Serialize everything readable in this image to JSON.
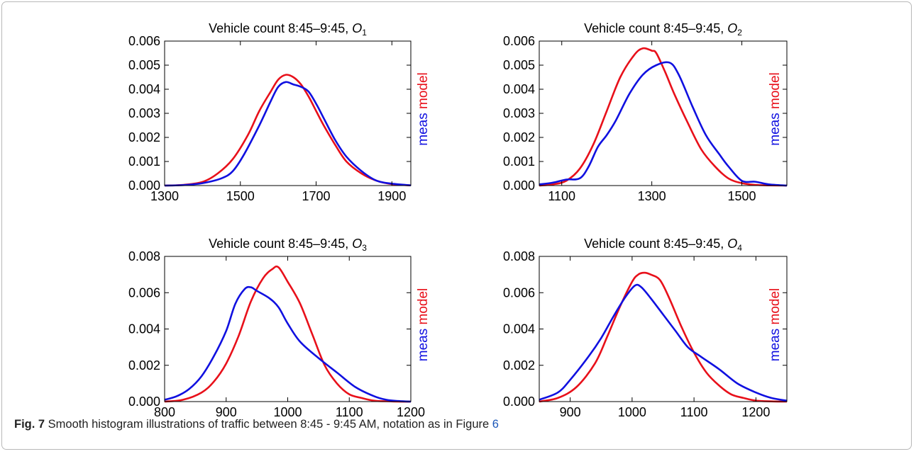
{
  "colors": {
    "model": "#e8101a",
    "meas": "#1010e0",
    "axis": "#000000"
  },
  "legend": {
    "model_label": "model",
    "meas_label": "meas"
  },
  "caption": {
    "label": "Fig. 7",
    "text": " Smooth histogram illustrations of traffic between 8:45 - 9:45 AM, notation as in Figure ",
    "ref": "6"
  },
  "chart_data": [
    {
      "type": "line",
      "title_prefix": "Vehicle count 8:45–9:45, ",
      "title_var": "O",
      "title_sub": "1",
      "xlim": [
        1300,
        1950
      ],
      "ylim": [
        0,
        0.006
      ],
      "xticks": [
        1300,
        1500,
        1700,
        1900
      ],
      "xtick_labels": [
        "1300",
        "1500",
        "1700",
        "1900"
      ],
      "yticks": [
        0,
        0.001,
        0.002,
        0.003,
        0.004,
        0.005,
        0.006
      ],
      "ytick_labels": [
        "0.000",
        "0.001",
        "0.002",
        "0.003",
        "0.004",
        "0.005",
        "0.006"
      ],
      "series": [
        {
          "name": "model",
          "x": [
            1300,
            1350,
            1400,
            1440,
            1480,
            1520,
            1550,
            1580,
            1600,
            1620,
            1640,
            1660,
            1680,
            1700,
            1720,
            1750,
            1780,
            1820,
            1860,
            1900,
            1950
          ],
          "y": [
            0,
            3e-05,
            0.00015,
            0.0005,
            0.0011,
            0.0021,
            0.0031,
            0.0039,
            0.0044,
            0.0046,
            0.0045,
            0.0042,
            0.0037,
            0.0031,
            0.0025,
            0.0017,
            0.001,
            0.0005,
            0.0002,
            6e-05,
            1e-05
          ]
        },
        {
          "name": "meas",
          "x": [
            1300,
            1350,
            1400,
            1450,
            1480,
            1510,
            1550,
            1580,
            1600,
            1620,
            1640,
            1660,
            1680,
            1700,
            1720,
            1750,
            1780,
            1820,
            1860,
            1900,
            1950
          ],
          "y": [
            0,
            2e-05,
            0.0001,
            0.0003,
            0.0006,
            0.0013,
            0.0025,
            0.0035,
            0.0041,
            0.0043,
            0.0042,
            0.0041,
            0.0039,
            0.0034,
            0.0028,
            0.0019,
            0.0012,
            0.0006,
            0.0002,
            8e-05,
            1e-05
          ]
        }
      ]
    },
    {
      "type": "line",
      "title_prefix": "Vehicle count 8:45–9:45, ",
      "title_var": "O",
      "title_sub": "2",
      "xlim": [
        1050,
        1600
      ],
      "ylim": [
        0,
        0.006
      ],
      "xticks": [
        1100,
        1300,
        1500
      ],
      "xtick_labels": [
        "1100",
        "1300",
        "1500"
      ],
      "yticks": [
        0,
        0.001,
        0.002,
        0.003,
        0.004,
        0.005,
        0.006
      ],
      "ytick_labels": [
        "0.000",
        "0.001",
        "0.002",
        "0.003",
        "0.004",
        "0.005",
        "0.006"
      ],
      "series": [
        {
          "name": "model",
          "x": [
            1050,
            1080,
            1110,
            1140,
            1170,
            1200,
            1230,
            1260,
            1280,
            1300,
            1310,
            1330,
            1350,
            1380,
            1410,
            1440,
            1470,
            1500,
            1530,
            1560,
            1600
          ],
          "y": [
            0,
            5e-05,
            0.0002,
            0.0007,
            0.0017,
            0.0031,
            0.0045,
            0.0054,
            0.0057,
            0.0056,
            0.0055,
            0.0047,
            0.0038,
            0.0026,
            0.0015,
            0.0008,
            0.0003,
            0.0001,
            3e-05,
            1e-05,
            0
          ]
        },
        {
          "name": "meas",
          "x": [
            1050,
            1080,
            1110,
            1140,
            1160,
            1180,
            1200,
            1220,
            1250,
            1280,
            1310,
            1340,
            1360,
            1390,
            1420,
            1450,
            1470,
            1500,
            1530,
            1560,
            1600
          ],
          "y": [
            5e-05,
            0.00012,
            0.00025,
            0.0003,
            0.0008,
            0.0016,
            0.0021,
            0.0027,
            0.0038,
            0.0046,
            0.005,
            0.0051,
            0.0046,
            0.0033,
            0.0021,
            0.0013,
            0.0008,
            0.0002,
            0.00016,
            5e-05,
            0
          ]
        }
      ]
    },
    {
      "type": "line",
      "title_prefix": "Vehicle count 8:45–9:45, ",
      "title_var": "O",
      "title_sub": "3",
      "xlim": [
        800,
        1200
      ],
      "ylim": [
        0,
        0.008
      ],
      "xticks": [
        800,
        900,
        1000,
        1100,
        1200
      ],
      "xtick_labels": [
        "800",
        "900",
        "1000",
        "1100",
        "1200"
      ],
      "yticks": [
        0,
        0.002,
        0.004,
        0.006,
        0.008
      ],
      "ytick_labels": [
        "0.000",
        "0.002",
        "0.004",
        "0.006",
        "0.008"
      ],
      "series": [
        {
          "name": "model",
          "x": [
            800,
            830,
            860,
            880,
            900,
            920,
            940,
            960,
            975,
            985,
            1000,
            1020,
            1040,
            1060,
            1080,
            1100,
            1120,
            1140,
            1160,
            1180,
            1200
          ],
          "y": [
            0,
            0.0001,
            0.0005,
            0.0011,
            0.0021,
            0.0036,
            0.0055,
            0.0068,
            0.0073,
            0.0074,
            0.0066,
            0.0054,
            0.0037,
            0.002,
            0.001,
            0.0004,
            0.0002,
            5e-05,
            2e-05,
            0,
            0
          ]
        },
        {
          "name": "meas",
          "x": [
            800,
            820,
            840,
            860,
            880,
            900,
            915,
            930,
            940,
            950,
            970,
            985,
            1000,
            1020,
            1050,
            1080,
            1110,
            1140,
            1160,
            1180,
            1200
          ],
          "y": [
            0.0001,
            0.0003,
            0.0007,
            0.0014,
            0.0025,
            0.0039,
            0.0054,
            0.0062,
            0.0063,
            0.0061,
            0.0057,
            0.0052,
            0.0043,
            0.0033,
            0.0024,
            0.0016,
            0.0008,
            0.0003,
            0.0001,
            3e-05,
            0
          ]
        }
      ]
    },
    {
      "type": "line",
      "title_prefix": "Vehicle count 8:45–9:45, ",
      "title_var": "O",
      "title_sub": "4",
      "xlim": [
        850,
        1250
      ],
      "ylim": [
        0,
        0.008
      ],
      "xticks": [
        900,
        1000,
        1100,
        1200
      ],
      "xtick_labels": [
        "900",
        "1000",
        "1100",
        "1200"
      ],
      "yticks": [
        0,
        0.002,
        0.004,
        0.006,
        0.008
      ],
      "ytick_labels": [
        "0.000",
        "0.002",
        "0.004",
        "0.006",
        "0.008"
      ],
      "series": [
        {
          "name": "model",
          "x": [
            850,
            880,
            910,
            940,
            960,
            980,
            1000,
            1010,
            1020,
            1030,
            1045,
            1060,
            1080,
            1100,
            1120,
            1140,
            1160,
            1180,
            1200,
            1225,
            1250
          ],
          "y": [
            0,
            0.0002,
            0.0008,
            0.0021,
            0.0036,
            0.0052,
            0.0066,
            0.007,
            0.0071,
            0.007,
            0.0067,
            0.0057,
            0.0041,
            0.0027,
            0.0016,
            0.0009,
            0.0004,
            0.0002,
            5e-05,
            1e-05,
            0
          ]
        },
        {
          "name": "meas",
          "x": [
            850,
            880,
            900,
            930,
            950,
            970,
            990,
            1005,
            1015,
            1030,
            1050,
            1070,
            1090,
            1110,
            1140,
            1170,
            1200,
            1225,
            1250
          ],
          "y": [
            0.0001,
            0.0005,
            0.0012,
            0.0025,
            0.0035,
            0.0047,
            0.0058,
            0.0064,
            0.0063,
            0.0057,
            0.0048,
            0.0039,
            0.003,
            0.0025,
            0.0018,
            0.001,
            0.0005,
            0.0002,
            5e-05
          ]
        }
      ]
    }
  ]
}
